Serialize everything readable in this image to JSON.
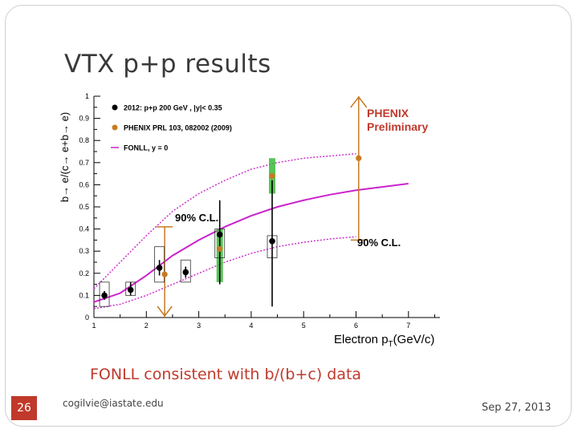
{
  "slide": {
    "title": "VTX p+p results",
    "caption": "FONLL consistent with b/(b+c) data",
    "page_number": "26",
    "email": "cogilvie@iastate.edu",
    "date": "Sep 27, 2013"
  },
  "colors": {
    "accent": "#c0392b",
    "run12": "#000000",
    "prl": "#c87a22",
    "fonll": "#cc22cc",
    "syst_band": "#3cb83c"
  },
  "chart_data": {
    "type": "scatter",
    "xlabel_main": "Electron p",
    "xlabel_sub": "T",
    "xlabel_unit": "(GeV/c)",
    "ylabel": "b→ e/(c→ e+b→ e)",
    "xlim": [
      1,
      8
    ],
    "ylim": [
      0,
      1
    ],
    "x_ticks": [
      1,
      2,
      3,
      4,
      5,
      6,
      7
    ],
    "y_ticks": [
      0,
      0.1,
      0.2,
      0.3,
      0.4,
      0.5,
      0.6,
      0.7,
      0.8,
      0.9,
      1
    ],
    "x_tick_labels": [
      "1",
      "2",
      "3",
      "4",
      "5",
      "6",
      "7"
    ],
    "y_tick_labels": [
      "0",
      "0.1",
      "0.2",
      "0.3",
      "0.4",
      "0.5",
      "0.6",
      "0.7",
      "0.8",
      "0.9",
      "1"
    ],
    "legend": {
      "placement": "top-left",
      "entries": [
        {
          "label": "2012: p+p 200 GeV , |y|< 0.35",
          "key": "run12"
        },
        {
          "label": "PHENIX PRL 103, 082002 (2009)",
          "key": "prl"
        },
        {
          "label": "FONLL, y = 0",
          "key": "fonll"
        }
      ]
    },
    "annotations": {
      "phenix": "PHENIX",
      "preliminary": "Preliminary",
      "cl_low": "90% C.L.",
      "cl_high": "90% C.L."
    },
    "series": [
      {
        "key": "run12",
        "points": [
          {
            "x": 1.2,
            "y": 0.1,
            "ylo": 0.08,
            "yhi": 0.12,
            "slo": 0.05,
            "shi": 0.16
          },
          {
            "x": 1.7,
            "y": 0.125,
            "ylo": 0.1,
            "yhi": 0.16,
            "slo": 0.1,
            "shi": 0.16
          },
          {
            "x": 2.25,
            "y": 0.225,
            "ylo": 0.19,
            "yhi": 0.26,
            "slo": 0.16,
            "shi": 0.32
          },
          {
            "x": 2.75,
            "y": 0.205,
            "ylo": 0.18,
            "yhi": 0.23,
            "slo": 0.16,
            "shi": 0.26
          },
          {
            "x": 3.4,
            "y": 0.375,
            "ylo": 0.15,
            "yhi": 0.53,
            "slo": 0.27,
            "shi": 0.4
          },
          {
            "x": 4.4,
            "y": 0.345,
            "ylo": 0.05,
            "yhi": 0.62,
            "slo": 0.27,
            "shi": 0.37
          }
        ]
      },
      {
        "key": "prl",
        "points": [
          {
            "x": 2.35,
            "y": 0.195
          },
          {
            "x": 3.4,
            "y": 0.31
          },
          {
            "x": 4.4,
            "y": 0.64
          },
          {
            "x": 6.05,
            "y": 0.72
          }
        ]
      }
    ],
    "limits": [
      {
        "x": 2.35,
        "lower": 0,
        "upper": 0.41,
        "arrow": "down"
      },
      {
        "x": 6.05,
        "lower": 0.35,
        "upper": 1,
        "arrow": "up"
      }
    ],
    "syst_bands": [
      {
        "x": 3.4,
        "ylo": 0.16,
        "yhi": 0.4
      },
      {
        "x": 4.4,
        "ylo": 0.56,
        "yhi": 0.72
      }
    ],
    "fonll": {
      "x": [
        1.0,
        1.5,
        2.0,
        2.5,
        3.0,
        3.5,
        4.0,
        4.5,
        5.0,
        5.5,
        6.0,
        6.5,
        7.0
      ],
      "central": [
        0.07,
        0.11,
        0.19,
        0.28,
        0.35,
        0.41,
        0.46,
        0.5,
        0.53,
        0.555,
        0.575,
        0.59,
        0.605
      ],
      "upper": [
        0.13,
        0.25,
        0.37,
        0.48,
        0.56,
        0.62,
        0.67,
        0.7,
        0.72,
        0.73,
        0.74,
        0.75,
        0.755
      ],
      "lower": [
        0.04,
        0.06,
        0.1,
        0.15,
        0.2,
        0.25,
        0.29,
        0.32,
        0.34,
        0.355,
        0.365,
        0.37,
        0.375
      ],
      "x_upper_end": 6.0,
      "x_lower_end": 6.0,
      "x_central_end": 7.0
    }
  }
}
